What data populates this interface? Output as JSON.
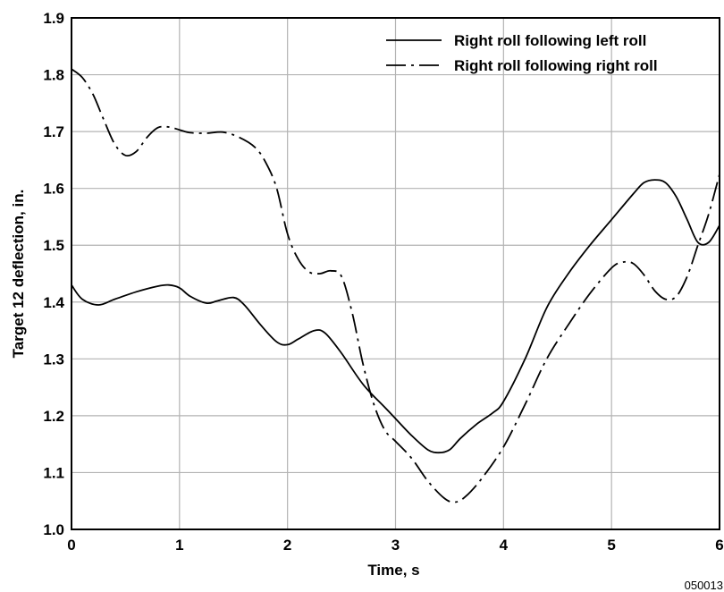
{
  "chart_data": {
    "type": "line",
    "xlabel": "Time, s",
    "ylabel": "Target 12 deflection, in.",
    "xlim": [
      0,
      6
    ],
    "ylim": [
      1.0,
      1.9
    ],
    "xticks": [
      "0",
      "1",
      "2",
      "3",
      "4",
      "5",
      "6"
    ],
    "yticks": [
      "1.0",
      "1.1",
      "1.2",
      "1.3",
      "1.4",
      "1.5",
      "1.6",
      "1.7",
      "1.8",
      "1.9"
    ],
    "grid": true,
    "legend_position": "top-right",
    "series": [
      {
        "name": "Right roll following left roll",
        "style": "solid",
        "x": [
          0,
          0.1,
          0.25,
          0.4,
          0.6,
          0.8,
          0.9,
          1.0,
          1.1,
          1.25,
          1.35,
          1.5,
          1.6,
          1.75,
          1.9,
          2.0,
          2.1,
          2.25,
          2.35,
          2.5,
          2.7,
          2.9,
          3.0,
          3.15,
          3.3,
          3.4,
          3.5,
          3.6,
          3.75,
          3.9,
          4.0,
          4.2,
          4.4,
          4.6,
          4.8,
          5.0,
          5.2,
          5.3,
          5.4,
          5.5,
          5.6,
          5.7,
          5.8,
          5.9,
          6.0
        ],
        "y": [
          1.43,
          1.405,
          1.395,
          1.405,
          1.418,
          1.428,
          1.43,
          1.425,
          1.41,
          1.398,
          1.402,
          1.408,
          1.395,
          1.36,
          1.33,
          1.325,
          1.335,
          1.35,
          1.345,
          1.31,
          1.255,
          1.215,
          1.195,
          1.165,
          1.14,
          1.135,
          1.14,
          1.16,
          1.185,
          1.205,
          1.225,
          1.3,
          1.39,
          1.45,
          1.5,
          1.545,
          1.59,
          1.61,
          1.615,
          1.61,
          1.585,
          1.545,
          1.505,
          1.505,
          1.535
        ]
      },
      {
        "name": "Right roll following right roll",
        "style": "dashdot",
        "x": [
          0,
          0.1,
          0.2,
          0.3,
          0.4,
          0.5,
          0.6,
          0.7,
          0.8,
          0.9,
          1.0,
          1.1,
          1.25,
          1.4,
          1.55,
          1.7,
          1.8,
          1.9,
          2.0,
          2.1,
          2.2,
          2.3,
          2.4,
          2.5,
          2.6,
          2.7,
          2.8,
          2.9,
          3.0,
          3.15,
          3.3,
          3.45,
          3.55,
          3.65,
          3.8,
          4.0,
          4.2,
          4.4,
          4.6,
          4.8,
          5.0,
          5.1,
          5.2,
          5.3,
          5.4,
          5.5,
          5.6,
          5.7,
          5.8,
          5.9,
          6.0
        ],
        "y": [
          1.81,
          1.795,
          1.765,
          1.72,
          1.678,
          1.658,
          1.665,
          1.69,
          1.707,
          1.708,
          1.703,
          1.698,
          1.697,
          1.699,
          1.69,
          1.672,
          1.645,
          1.6,
          1.52,
          1.475,
          1.453,
          1.45,
          1.455,
          1.445,
          1.38,
          1.29,
          1.22,
          1.175,
          1.155,
          1.125,
          1.085,
          1.055,
          1.048,
          1.058,
          1.09,
          1.145,
          1.22,
          1.3,
          1.36,
          1.415,
          1.46,
          1.47,
          1.468,
          1.448,
          1.42,
          1.405,
          1.41,
          1.445,
          1.5,
          1.555,
          1.625
        ]
      }
    ]
  },
  "figure_id": "050013"
}
